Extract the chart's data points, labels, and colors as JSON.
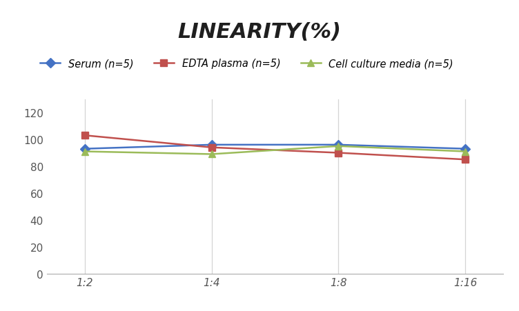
{
  "title": "LINEARITY(%)",
  "x_labels_display": [
    "1:2",
    "1:4",
    "1:8",
    "1:16"
  ],
  "series": [
    {
      "label": "Serum (n=5)",
      "color": "#4472C4",
      "marker": "D",
      "values": [
        93,
        96,
        96,
        93
      ]
    },
    {
      "label": "EDTA plasma (n=5)",
      "color": "#C0504D",
      "marker": "s",
      "values": [
        103,
        94,
        90,
        85
      ]
    },
    {
      "label": "Cell culture media (n=5)",
      "color": "#9BBB59",
      "marker": "^",
      "values": [
        91,
        89,
        95,
        91
      ]
    }
  ],
  "ylim": [
    0,
    130
  ],
  "yticks": [
    0,
    20,
    40,
    60,
    80,
    100,
    120
  ],
  "background_color": "#ffffff",
  "grid_color": "#d4d4d4",
  "title_fontsize": 22,
  "legend_fontsize": 10.5,
  "tick_fontsize": 11
}
